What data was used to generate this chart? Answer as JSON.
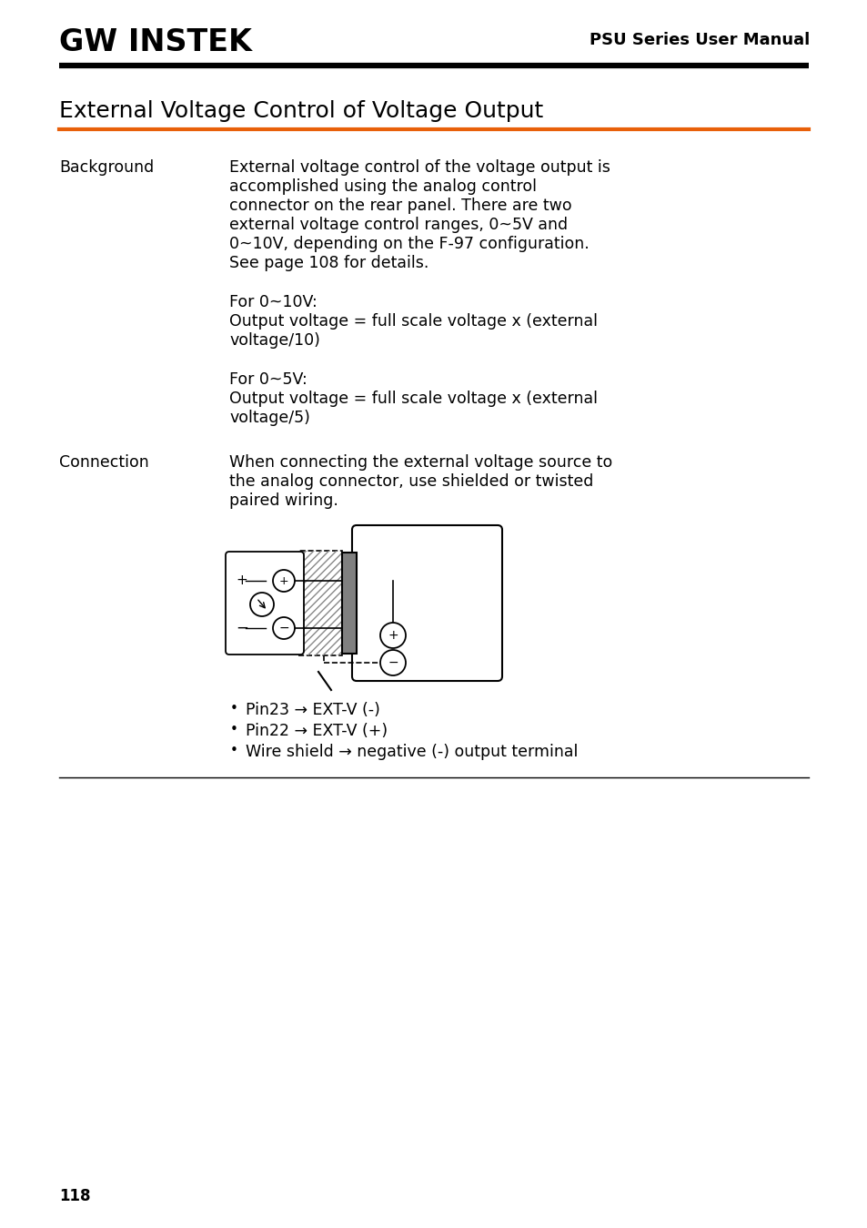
{
  "bg_color": "#ffffff",
  "header_text": "PSU Series User Manual",
  "logo_text": "GW INSTEK",
  "title": "External Voltage Control of Voltage Output",
  "orange_line_color": "#e8600a",
  "black_line_color": "#000000",
  "section1_label": "Background",
  "section1_text_line1": "External voltage control of the voltage output is",
  "section1_text_line2": "accomplished using the analog control",
  "section1_text_line3": "connector on the rear panel. There are two",
  "section1_text_line4": "external voltage control ranges, 0~5V and",
  "section1_text_line5": "0~10V, depending on the F-97 configuration.",
  "section1_text_line6": "See page 108 for details.",
  "section1_para2_line1": "For 0~10V:",
  "section1_para2_line2": "Output voltage = full scale voltage x (external",
  "section1_para2_line3": "voltage/10)",
  "section1_para3_line1": "For 0~5V:",
  "section1_para3_line2": "Output voltage = full scale voltage x (external",
  "section1_para3_line3": "voltage/5)",
  "section2_label": "Connection",
  "section2_text_line1": "When connecting the external voltage source to",
  "section2_text_line2": "the analog connector, use shielded or twisted",
  "section2_text_line3": "paired wiring.",
  "bullet1": "Pin23 → EXT-V (-)",
  "bullet2": "Pin22 → EXT-V (+)",
  "bullet3": "Wire shield → negative (-) output terminal",
  "page_number": "118",
  "font_size_body": 12.5,
  "font_size_header": 13,
  "font_size_title": 18,
  "font_size_label": 12.5,
  "font_size_page": 12
}
